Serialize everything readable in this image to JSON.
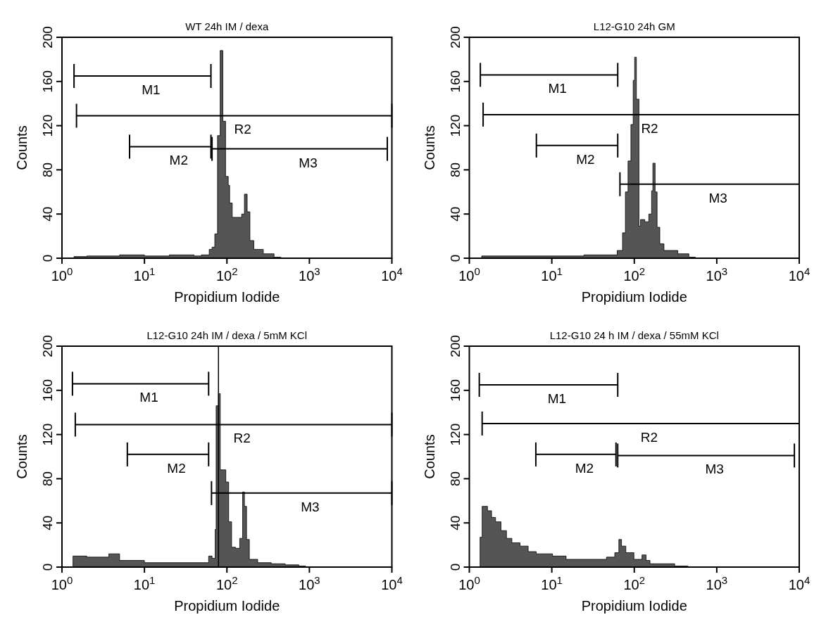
{
  "chart_data": [
    {
      "type": "area",
      "title": "WT 24h IM / dexa",
      "xlabel": "Propidium Iodide",
      "ylabel": "Counts",
      "log": "x",
      "xlim": [
        1,
        10000
      ],
      "xticks": [
        {
          "value": 1,
          "label": "10$^{0}$"
        },
        {
          "value": 10,
          "label": "10$^{1}$"
        },
        {
          "value": 100,
          "label": "10$^{2}$"
        },
        {
          "value": 1000,
          "label": "10$^{3}$"
        },
        {
          "value": 10000,
          "label": "10$^{4}$"
        }
      ],
      "ylim": [
        0,
        200
      ],
      "yticks": [
        0,
        40,
        80,
        120,
        160,
        200
      ],
      "series": [
        {
          "color": "#555555",
          "x": [
            1,
            1.4,
            2,
            5,
            10,
            20,
            40,
            49,
            61,
            66,
            71.3,
            76.9,
            82.8,
            89.3,
            96.3,
            103.8,
            107.9,
            116,
            130,
            151,
            163,
            176,
            190,
            212,
            276,
            373,
            450,
            10000
          ],
          "values": [
            0,
            1.5,
            2,
            3,
            2,
            3,
            2,
            3,
            8,
            10,
            22,
            111,
            188,
            124,
            74,
            66,
            50,
            37,
            37,
            40,
            58,
            42,
            16,
            8,
            4,
            1,
            0,
            0
          ]
        },
        {
          "type": "line",
          "name": "M1",
          "color": "#000000",
          "x": [
            1.4,
            64
          ],
          "values": [
            165,
            165
          ]
        },
        {
          "type": "line",
          "name": "R2",
          "color": "#000000",
          "x": [
            1.5,
            10000
          ],
          "values": [
            129,
            129
          ]
        },
        {
          "type": "line",
          "name": "M2",
          "color": "#000000",
          "x": [
            6.6,
            64
          ],
          "values": [
            101,
            101
          ]
        },
        {
          "type": "line",
          "name": "M3",
          "color": "#000000",
          "x": [
            66,
            8800
          ],
          "values": [
            99,
            99
          ]
        }
      ]
    },
    {
      "type": "area",
      "title": "L12-G10 24h GM",
      "xlabel": "Propidium Iodide",
      "ylabel": "Counts",
      "log": "x",
      "xlim": [
        1,
        10000
      ],
      "xticks": [
        {
          "value": 1,
          "label": "10$^{0}$"
        },
        {
          "value": 10,
          "label": "10$^{1}$"
        },
        {
          "value": 100,
          "label": "10$^{2}$"
        },
        {
          "value": 1000,
          "label": "10$^{3}$"
        },
        {
          "value": 10000,
          "label": "10$^{4}$"
        }
      ],
      "ylim": [
        0,
        200
      ],
      "yticks": [
        0,
        40,
        80,
        120,
        160,
        200
      ],
      "series": [
        {
          "color": "#555555",
          "x": [
            1,
            1.41,
            3,
            10,
            24.5,
            50,
            62,
            72,
            78,
            84,
            91,
            97,
            101,
            106,
            114,
            119,
            134,
            150,
            162,
            168,
            179,
            189,
            204,
            229,
            337,
            459,
            550,
            10000
          ],
          "values": [
            0,
            2,
            2,
            2,
            3,
            3,
            7,
            23,
            60,
            88,
            121,
            161,
            182,
            144,
            29,
            35,
            33,
            40,
            61,
            86,
            60,
            28,
            13,
            7,
            4,
            1,
            0,
            0
          ]
        },
        {
          "type": "line",
          "name": "M1",
          "color": "#000000",
          "x": [
            1.36,
            63
          ],
          "values": [
            166,
            166
          ]
        },
        {
          "type": "line",
          "name": "R2",
          "color": "#000000",
          "x": [
            1.47,
            10000
          ],
          "values": [
            130,
            130
          ]
        },
        {
          "type": "line",
          "name": "M2",
          "color": "#000000",
          "x": [
            6.5,
            63
          ],
          "values": [
            102,
            102
          ]
        },
        {
          "type": "line",
          "name": "M3",
          "color": "#000000",
          "x": [
            67,
            10000
          ],
          "values": [
            67,
            67
          ]
        }
      ]
    },
    {
      "type": "area",
      "title": "L12-G10 24h IM / dexa / 5mM KCl",
      "xlabel": "Propidium Iodide",
      "ylabel": "Counts",
      "log": "x",
      "xlim": [
        1,
        10000
      ],
      "xticks": [
        {
          "value": 1,
          "label": "10$^{0}$"
        },
        {
          "value": 10,
          "label": "10$^{1}$"
        },
        {
          "value": 100,
          "label": "10$^{2}$"
        },
        {
          "value": 1000,
          "label": "10$^{3}$"
        },
        {
          "value": 10000,
          "label": "10$^{4}$"
        }
      ],
      "ylim": [
        0,
        200
      ],
      "yticks": [
        0,
        40,
        80,
        120,
        160,
        200
      ],
      "ref_lines": [
        {
          "axis": "x",
          "value": 79
        }
      ],
      "series": [
        {
          "color": "#555555",
          "x": [
            1,
            1.3,
            1.36,
            2,
            3,
            3.7,
            5,
            10,
            30,
            60,
            66,
            72,
            74,
            79,
            83,
            90,
            97,
            105,
            114,
            127,
            143,
            155,
            163,
            173,
            187,
            236,
            345,
            509,
            745,
            900,
            10000
          ],
          "values": [
            0,
            0,
            10,
            9,
            9,
            12,
            6,
            4,
            4,
            10,
            8,
            34,
            146,
            157,
            88,
            88,
            77,
            41,
            18,
            17,
            26,
            68,
            55,
            25,
            7,
            4,
            3,
            2,
            1,
            0,
            0
          ]
        },
        {
          "type": "line",
          "name": "M1",
          "color": "#000000",
          "x": [
            1.34,
            60
          ],
          "values": [
            166,
            166
          ]
        },
        {
          "type": "line",
          "name": "R2",
          "color": "#000000",
          "x": [
            1.45,
            10000
          ],
          "values": [
            129,
            129
          ]
        },
        {
          "type": "line",
          "name": "M2",
          "color": "#000000",
          "x": [
            6.2,
            60
          ],
          "values": [
            102,
            102
          ]
        },
        {
          "type": "line",
          "name": "M3",
          "color": "#000000",
          "x": [
            65,
            10000
          ],
          "values": [
            67,
            67
          ]
        }
      ]
    },
    {
      "type": "area",
      "title": "L12-G10 24 h IM / dexa / 55mM KCl",
      "xlabel": "Propidium Iodide",
      "ylabel": "Counts",
      "log": "x",
      "xlim": [
        1,
        10000
      ],
      "xticks": [
        {
          "value": 1,
          "label": "10$^{0}$"
        },
        {
          "value": 10,
          "label": "10$^{1}$"
        },
        {
          "value": 100,
          "label": "10$^{2}$"
        },
        {
          "value": 1000,
          "label": "10$^{3}$"
        },
        {
          "value": 10000,
          "label": "10$^{4}$"
        }
      ],
      "ylim": [
        0,
        200
      ],
      "yticks": [
        0,
        40,
        80,
        120,
        160,
        200
      ],
      "series": [
        {
          "color": "#555555",
          "x": [
            1,
            1.32,
            1.35,
            1.43,
            1.66,
            1.86,
            2.08,
            2.42,
            2.82,
            3.28,
            4.12,
            5.17,
            6.48,
            10.2,
            14.9,
            21.8,
            34,
            46,
            58,
            65,
            70,
            79,
            99,
            124,
            139,
            155,
            209,
            309,
            447,
            10000
          ],
          "values": [
            0,
            0,
            27,
            55,
            51,
            45,
            41,
            33,
            26,
            22,
            19,
            14,
            12,
            10,
            7,
            7,
            7,
            9,
            13,
            25,
            19,
            13,
            7,
            11,
            6,
            3,
            3,
            1,
            0,
            0
          ]
        },
        {
          "type": "line",
          "name": "M1",
          "color": "#000000",
          "x": [
            1.32,
            63
          ],
          "values": [
            165,
            165
          ]
        },
        {
          "type": "line",
          "name": "R2",
          "color": "#000000",
          "x": [
            1.43,
            10000
          ],
          "values": [
            130,
            130
          ]
        },
        {
          "type": "line",
          "name": "M2",
          "color": "#000000",
          "x": [
            6.4,
            60
          ],
          "values": [
            102,
            102
          ]
        },
        {
          "type": "line",
          "name": "M3",
          "color": "#000000",
          "x": [
            63,
            8730
          ],
          "values": [
            101,
            101
          ]
        }
      ]
    }
  ]
}
